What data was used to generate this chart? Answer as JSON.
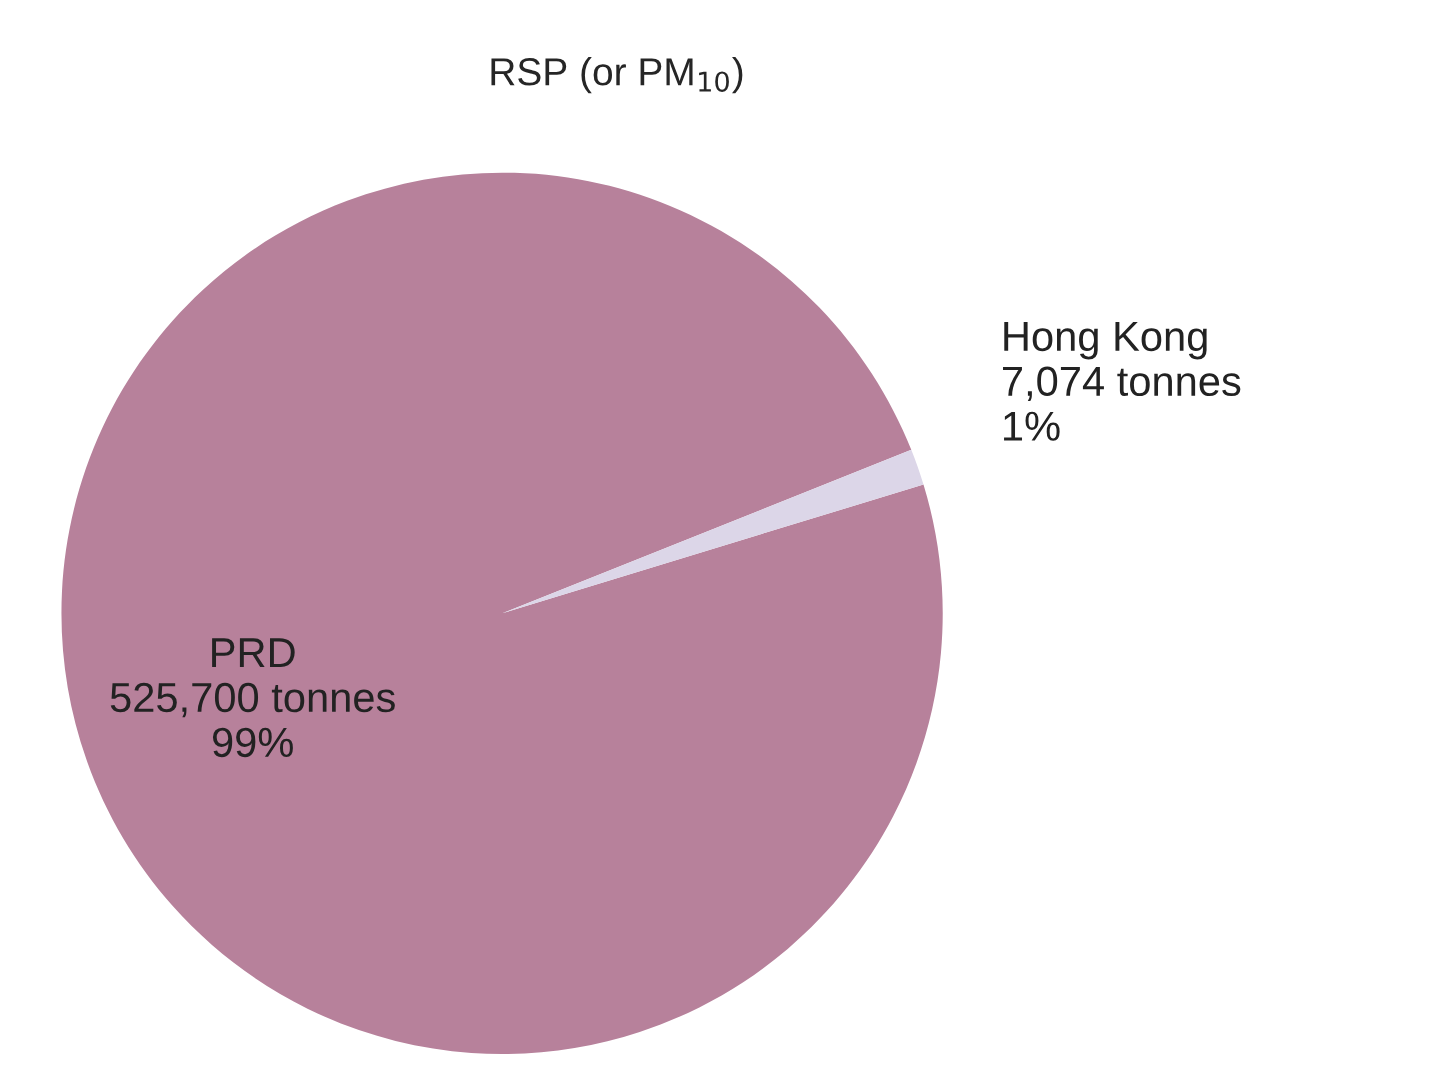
{
  "chart_data": {
    "type": "pie",
    "title": "RSP (or PM$_{10}$)",
    "categories": [
      "PRD",
      "Hong Kong"
    ],
    "values": [
      525700,
      7074
    ],
    "value_labels": [
      "525,700 tonnes\n99%",
      "7,074 tonnes\n1%"
    ],
    "colors": [
      "#b7819b",
      "#dcd6e8"
    ]
  }
}
